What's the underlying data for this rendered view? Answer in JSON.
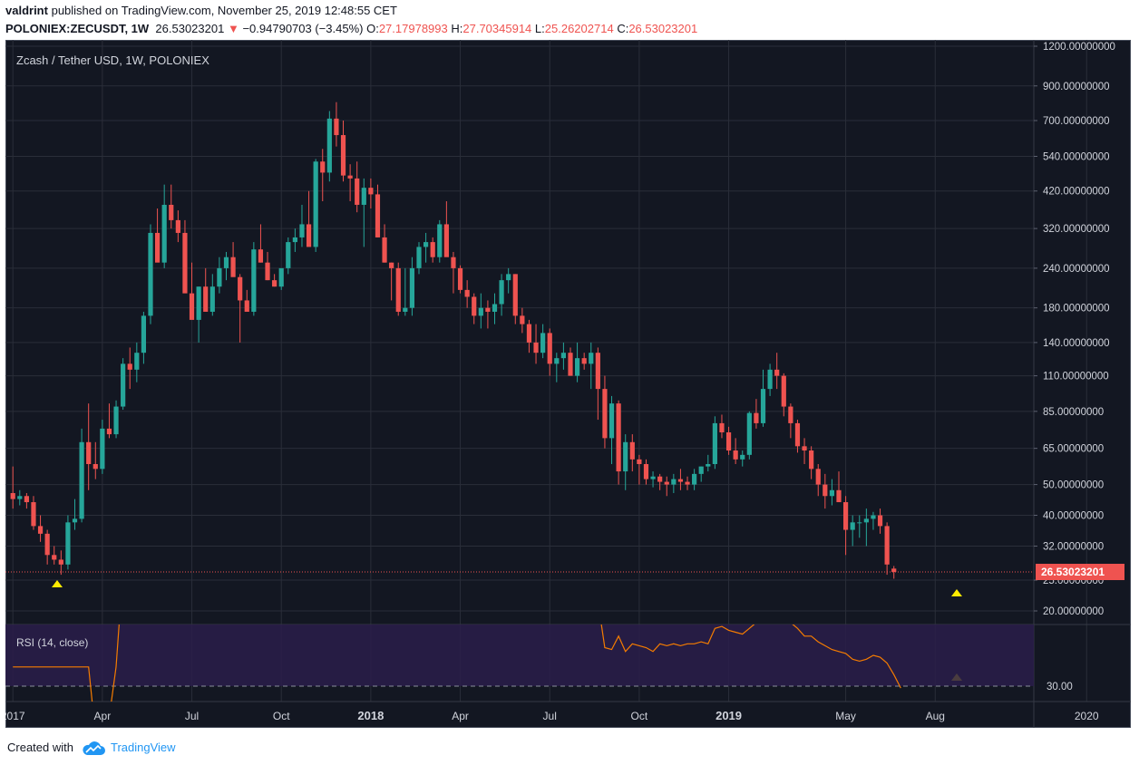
{
  "header": {
    "author": "valdrint",
    "published_text": "published on TradingView.com, November 25, 2019 12:48:55 CET",
    "symbol": "POLONIEX:ZECUSDT, 1W",
    "last": "26.53023201",
    "change": "−0.94790703 (−3.45%)",
    "o_label": "O:",
    "o_value": "27.17978993",
    "h_label": "H:",
    "h_value": "27.70345914",
    "l_label": "L:",
    "l_value": "25.26202714",
    "c_label": "C:",
    "c_value": "26.53023201"
  },
  "footer": {
    "created_with": "Created with",
    "brand": "TradingView"
  },
  "colors": {
    "background": "#131722",
    "up": "#26a69a",
    "down": "#ef5350",
    "rsi_line": "#f57c00",
    "marker": "#ffeb00",
    "rsi_band": "#2a1d4a"
  },
  "chart_data": {
    "type": "candlestick",
    "title": "Zcash / Tether USD, 1W, POLONIEX",
    "y_scale": "log",
    "y_ticks": [
      "1200.00000000",
      "900.00000000",
      "700.00000000",
      "540.00000000",
      "420.00000000",
      "320.00000000",
      "240.00000000",
      "180.00000000",
      "140.00000000",
      "110.00000000",
      "85.00000000",
      "65.00000000",
      "50.00000000",
      "40.00000000",
      "32.00000000",
      "25.00000000",
      "20.00000000"
    ],
    "y_tick_values": [
      1200,
      900,
      700,
      540,
      420,
      320,
      240,
      180,
      140,
      110,
      85,
      65,
      50,
      40,
      32,
      25,
      20
    ],
    "x_ticks": [
      "2017",
      "Apr",
      "Jul",
      "Oct",
      "2018",
      "Apr",
      "Jul",
      "Oct",
      "2019",
      "May",
      "Aug",
      "2020"
    ],
    "x_tick_weeks": [
      0,
      13,
      26,
      39,
      52,
      65,
      78,
      91,
      104,
      121,
      134,
      156
    ],
    "bold_x_ticks": [
      "2018",
      "2019"
    ],
    "last_price": 26.53023201,
    "last_price_label": "26.53023201",
    "markers": [
      "low-2017",
      "low-2019"
    ],
    "candles_ohlc": [
      [
        47,
        57,
        42,
        45
      ],
      [
        45,
        48,
        43,
        46
      ],
      [
        46,
        47,
        42,
        44
      ],
      [
        44,
        46,
        36,
        37
      ],
      [
        37,
        40,
        33,
        35
      ],
      [
        35,
        36,
        28,
        30
      ],
      [
        30,
        32,
        28,
        29
      ],
      [
        29,
        31,
        26,
        28
      ],
      [
        28,
        40,
        27,
        38
      ],
      [
        38,
        45,
        36,
        39
      ],
      [
        39,
        75,
        38,
        68
      ],
      [
        68,
        90,
        48,
        58
      ],
      [
        58,
        68,
        52,
        56
      ],
      [
        56,
        80,
        54,
        75
      ],
      [
        75,
        90,
        70,
        72
      ],
      [
        72,
        92,
        70,
        88
      ],
      [
        88,
        125,
        86,
        120
      ],
      [
        120,
        135,
        100,
        115
      ],
      [
        115,
        140,
        105,
        130
      ],
      [
        130,
        175,
        120,
        170
      ],
      [
        170,
        330,
        160,
        310
      ],
      [
        310,
        370,
        260,
        250
      ],
      [
        250,
        440,
        240,
        380
      ],
      [
        380,
        440,
        320,
        340
      ],
      [
        340,
        365,
        290,
        310
      ],
      [
        310,
        340,
        250,
        200
      ],
      [
        200,
        250,
        180,
        165
      ],
      [
        165,
        210,
        140,
        210
      ],
      [
        210,
        240,
        180,
        175
      ],
      [
        175,
        230,
        170,
        210
      ],
      [
        210,
        260,
        200,
        240
      ],
      [
        240,
        270,
        220,
        260
      ],
      [
        260,
        290,
        230,
        225
      ],
      [
        225,
        230,
        140,
        190
      ],
      [
        190,
        205,
        180,
        175
      ],
      [
        175,
        290,
        170,
        275
      ],
      [
        275,
        330,
        250,
        250
      ],
      [
        250,
        270,
        220,
        220
      ],
      [
        220,
        230,
        210,
        210
      ],
      [
        210,
        225,
        205,
        240
      ],
      [
        240,
        300,
        230,
        290
      ],
      [
        290,
        320,
        270,
        300
      ],
      [
        300,
        380,
        280,
        330
      ],
      [
        330,
        420,
        320,
        280
      ],
      [
        280,
        530,
        270,
        520
      ],
      [
        520,
        570,
        390,
        480
      ],
      [
        480,
        750,
        450,
        710
      ],
      [
        710,
        800,
        580,
        630
      ],
      [
        630,
        700,
        450,
        470
      ],
      [
        470,
        510,
        390,
        460
      ],
      [
        460,
        520,
        360,
        380
      ],
      [
        380,
        460,
        280,
        430
      ],
      [
        430,
        460,
        370,
        410
      ],
      [
        410,
        440,
        300,
        300
      ],
      [
        300,
        330,
        250,
        250
      ],
      [
        250,
        250,
        190,
        240
      ],
      [
        240,
        250,
        170,
        175
      ],
      [
        175,
        240,
        170,
        180
      ],
      [
        180,
        260,
        170,
        240
      ],
      [
        240,
        290,
        230,
        280
      ],
      [
        280,
        310,
        250,
        290
      ],
      [
        290,
        300,
        250,
        260
      ],
      [
        260,
        340,
        250,
        330
      ],
      [
        330,
        390,
        300,
        260
      ],
      [
        260,
        270,
        200,
        240
      ],
      [
        240,
        245,
        200,
        205
      ],
      [
        205,
        220,
        180,
        195
      ],
      [
        195,
        200,
        160,
        170
      ],
      [
        170,
        200,
        155,
        180
      ],
      [
        180,
        190,
        155,
        175
      ],
      [
        175,
        200,
        160,
        185
      ],
      [
        185,
        230,
        170,
        220
      ],
      [
        220,
        240,
        200,
        230
      ],
      [
        230,
        230,
        160,
        170
      ],
      [
        170,
        180,
        150,
        160
      ],
      [
        160,
        165,
        130,
        140
      ],
      [
        140,
        160,
        120,
        130
      ],
      [
        130,
        160,
        125,
        150
      ],
      [
        150,
        155,
        110,
        120
      ],
      [
        120,
        130,
        105,
        125
      ],
      [
        125,
        140,
        115,
        130
      ],
      [
        130,
        135,
        110,
        110
      ],
      [
        110,
        140,
        105,
        125
      ],
      [
        125,
        130,
        115,
        120
      ],
      [
        120,
        140,
        100,
        130
      ],
      [
        130,
        135,
        80,
        100
      ],
      [
        100,
        110,
        65,
        70
      ],
      [
        70,
        95,
        58,
        90
      ],
      [
        90,
        92,
        50,
        55
      ],
      [
        55,
        72,
        48,
        68
      ],
      [
        68,
        72,
        55,
        60
      ],
      [
        60,
        62,
        50,
        58
      ],
      [
        58,
        60,
        50,
        52
      ],
      [
        52,
        55,
        49,
        53
      ],
      [
        53,
        54,
        48,
        51
      ],
      [
        51,
        53,
        46,
        50
      ],
      [
        50,
        54,
        47,
        52
      ],
      [
        52,
        56,
        48,
        51
      ],
      [
        51,
        53,
        48,
        50
      ],
      [
        50,
        56,
        48,
        54
      ],
      [
        54,
        57,
        51,
        57
      ],
      [
        57,
        62,
        55,
        58
      ],
      [
        58,
        82,
        56,
        78
      ],
      [
        78,
        83,
        70,
        73
      ],
      [
        73,
        76,
        62,
        64
      ],
      [
        64,
        70,
        58,
        60
      ],
      [
        60,
        64,
        57,
        62
      ],
      [
        62,
        85,
        60,
        84
      ],
      [
        84,
        93,
        75,
        78
      ],
      [
        78,
        115,
        76,
        100
      ],
      [
        100,
        120,
        95,
        115
      ],
      [
        115,
        130,
        100,
        110
      ],
      [
        110,
        112,
        82,
        88
      ],
      [
        88,
        90,
        70,
        78
      ],
      [
        78,
        80,
        63,
        66
      ],
      [
        66,
        70,
        58,
        64
      ],
      [
        64,
        66,
        52,
        56
      ],
      [
        56,
        58,
        46,
        50
      ],
      [
        50,
        54,
        42,
        46
      ],
      [
        46,
        52,
        43,
        48
      ],
      [
        48,
        55,
        45,
        44
      ],
      [
        44,
        46,
        30,
        36
      ],
      [
        36,
        40,
        32,
        38
      ],
      [
        38,
        40,
        34,
        38
      ],
      [
        38,
        42,
        32,
        39
      ],
      [
        39,
        41,
        36,
        40
      ],
      [
        40,
        42,
        35,
        37
      ],
      [
        37,
        38,
        26,
        28
      ],
      [
        27.18,
        27.7,
        25.26,
        26.53
      ]
    ],
    "rsi": {
      "label": "RSI (14, close)",
      "level_label": "30.00",
      "levels": [
        30,
        70
      ],
      "values": [
        40,
        40,
        40,
        40,
        40,
        40,
        40,
        40,
        40,
        40,
        40,
        40,
        5,
        12,
        14,
        40,
        90,
        90,
        90,
        88,
        85,
        82,
        82,
        84,
        83,
        81,
        83,
        86,
        86,
        87,
        87,
        88,
        88,
        88,
        88,
        88,
        88,
        88,
        90,
        90,
        90,
        90,
        93,
        78,
        81,
        70,
        90,
        90,
        90,
        88,
        86,
        84,
        85,
        84,
        80,
        78,
        78,
        79,
        80,
        81,
        82,
        83,
        80,
        79,
        79,
        80,
        73,
        74,
        76,
        77,
        78,
        79,
        80,
        71,
        66,
        66,
        65,
        72,
        65,
        68,
        69,
        70,
        73,
        74,
        72,
        74,
        50,
        49,
        56,
        48,
        52,
        51,
        50,
        48,
        52,
        51,
        52,
        51,
        52,
        52,
        53,
        52,
        60,
        61,
        59,
        58,
        57,
        60,
        63,
        64,
        66,
        67,
        68,
        63,
        60,
        56,
        56,
        53,
        51,
        49,
        48,
        47,
        44,
        43,
        44,
        46,
        45,
        42,
        36,
        29
      ],
      "values_note": "RSI ranges 0-100"
    }
  }
}
